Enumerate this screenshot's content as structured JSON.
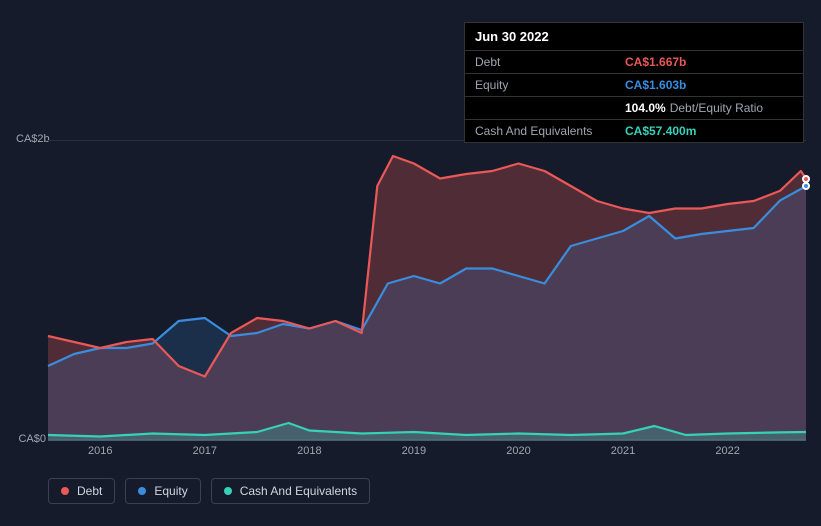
{
  "chart": {
    "type": "area-line",
    "background_color": "#151b2a",
    "grid_color": "#2a3040",
    "text_color": "#9fa6b2",
    "ylim": [
      0,
      2
    ],
    "ylabels": [
      {
        "value": 2,
        "text": "CA$2b"
      },
      {
        "value": 0,
        "text": "CA$0"
      }
    ],
    "x_years": [
      2016,
      2017,
      2018,
      2019,
      2020,
      2021,
      2022
    ],
    "x_domain": [
      2015.5,
      2022.75
    ],
    "series": {
      "debt": {
        "label": "Debt",
        "color": "#eb5858",
        "fill": "rgba(235,88,88,0.28)",
        "data": [
          [
            2015.5,
            0.7
          ],
          [
            2015.75,
            0.66
          ],
          [
            2016.0,
            0.62
          ],
          [
            2016.25,
            0.66
          ],
          [
            2016.5,
            0.68
          ],
          [
            2016.75,
            0.5
          ],
          [
            2017.0,
            0.43
          ],
          [
            2017.25,
            0.72
          ],
          [
            2017.5,
            0.82
          ],
          [
            2017.75,
            0.8
          ],
          [
            2018.0,
            0.75
          ],
          [
            2018.25,
            0.8
          ],
          [
            2018.5,
            0.72
          ],
          [
            2018.65,
            1.7
          ],
          [
            2018.8,
            1.9
          ],
          [
            2019.0,
            1.85
          ],
          [
            2019.25,
            1.75
          ],
          [
            2019.5,
            1.78
          ],
          [
            2019.75,
            1.8
          ],
          [
            2020.0,
            1.85
          ],
          [
            2020.25,
            1.8
          ],
          [
            2020.5,
            1.7
          ],
          [
            2020.75,
            1.6
          ],
          [
            2021.0,
            1.55
          ],
          [
            2021.25,
            1.52
          ],
          [
            2021.5,
            1.55
          ],
          [
            2021.75,
            1.55
          ],
          [
            2022.0,
            1.58
          ],
          [
            2022.25,
            1.6
          ],
          [
            2022.5,
            1.667
          ],
          [
            2022.7,
            1.8
          ],
          [
            2022.75,
            1.75
          ]
        ]
      },
      "equity": {
        "label": "Equity",
        "color": "#3a8dde",
        "fill": "rgba(58,141,222,0.18)",
        "data": [
          [
            2015.5,
            0.5
          ],
          [
            2015.75,
            0.58
          ],
          [
            2016.0,
            0.62
          ],
          [
            2016.25,
            0.62
          ],
          [
            2016.5,
            0.65
          ],
          [
            2016.75,
            0.8
          ],
          [
            2017.0,
            0.82
          ],
          [
            2017.25,
            0.7
          ],
          [
            2017.5,
            0.72
          ],
          [
            2017.75,
            0.78
          ],
          [
            2018.0,
            0.75
          ],
          [
            2018.25,
            0.8
          ],
          [
            2018.5,
            0.74
          ],
          [
            2018.75,
            1.05
          ],
          [
            2019.0,
            1.1
          ],
          [
            2019.25,
            1.05
          ],
          [
            2019.5,
            1.15
          ],
          [
            2019.75,
            1.15
          ],
          [
            2020.0,
            1.1
          ],
          [
            2020.25,
            1.05
          ],
          [
            2020.5,
            1.3
          ],
          [
            2020.75,
            1.35
          ],
          [
            2021.0,
            1.4
          ],
          [
            2021.25,
            1.5
          ],
          [
            2021.5,
            1.35
          ],
          [
            2021.75,
            1.38
          ],
          [
            2022.0,
            1.4
          ],
          [
            2022.25,
            1.42
          ],
          [
            2022.5,
            1.603
          ],
          [
            2022.7,
            1.68
          ],
          [
            2022.75,
            1.7
          ]
        ]
      },
      "cash": {
        "label": "Cash And Equivalents",
        "color": "#37d1b7",
        "fill": "rgba(55,209,183,0.25)",
        "data": [
          [
            2015.5,
            0.04
          ],
          [
            2016.0,
            0.03
          ],
          [
            2016.5,
            0.05
          ],
          [
            2017.0,
            0.04
          ],
          [
            2017.5,
            0.06
          ],
          [
            2017.8,
            0.12
          ],
          [
            2018.0,
            0.07
          ],
          [
            2018.5,
            0.05
          ],
          [
            2019.0,
            0.06
          ],
          [
            2019.5,
            0.04
          ],
          [
            2020.0,
            0.05
          ],
          [
            2020.5,
            0.04
          ],
          [
            2021.0,
            0.05
          ],
          [
            2021.3,
            0.1
          ],
          [
            2021.6,
            0.04
          ],
          [
            2022.0,
            0.05
          ],
          [
            2022.5,
            0.0574
          ],
          [
            2022.75,
            0.06
          ]
        ]
      }
    },
    "tooltip": {
      "date": "Jun 30 2022",
      "rows": [
        {
          "label": "Debt",
          "value": "CA$1.667b",
          "color": "#eb5858"
        },
        {
          "label": "Equity",
          "value": "CA$1.603b",
          "color": "#3a8dde"
        },
        {
          "label": "",
          "value": "104.0%",
          "secondary": "Debt/Equity Ratio",
          "color": "#ffffff"
        },
        {
          "label": "Cash And Equivalents",
          "value": "CA$57.400m",
          "color": "#37d1b7"
        }
      ]
    },
    "highlight_x": 2022.5,
    "markers": [
      {
        "series": "debt",
        "x": 2022.75,
        "y": 1.75
      },
      {
        "series": "equity",
        "x": 2022.75,
        "y": 1.7
      }
    ],
    "line_width": 2.2,
    "label_fontsize": 11
  }
}
